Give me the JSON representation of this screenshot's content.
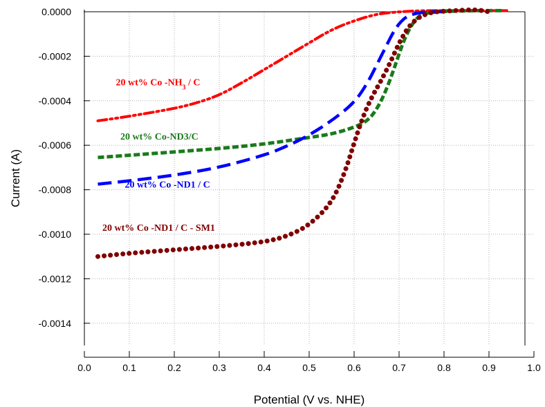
{
  "chart_data": {
    "type": "line",
    "xlabel": "Potential (V vs. NHE)",
    "ylabel": "Current (A)",
    "xlim": [
      0.0,
      1.0
    ],
    "ylim": [
      -0.0015,
      0.0
    ],
    "x_ticks": [
      "0.0",
      "0.1",
      "0.2",
      "0.3",
      "0.4",
      "0.5",
      "0.6",
      "0.7",
      "0.8",
      "0.9",
      "1.0"
    ],
    "y_ticks": [
      "0.0000",
      "-0.0002",
      "-0.0004",
      "-0.0006",
      "-0.0008",
      "-0.0010",
      "-0.0012",
      "-0.0014"
    ],
    "grid": true,
    "series": [
      {
        "name": "20 wt% Co -NH3 / C",
        "color": "#ff0000",
        "style": "dash-dot-dot",
        "points": [
          [
            0.03,
            -0.00049
          ],
          [
            0.1,
            -0.00047
          ],
          [
            0.2,
            -0.000435
          ],
          [
            0.25,
            -0.00041
          ],
          [
            0.3,
            -0.000375
          ],
          [
            0.35,
            -0.00032
          ],
          [
            0.4,
            -0.00026
          ],
          [
            0.45,
            -0.0002
          ],
          [
            0.5,
            -0.00014
          ],
          [
            0.55,
            -8e-05
          ],
          [
            0.6,
            -4e-05
          ],
          [
            0.65,
            -1e-05
          ],
          [
            0.7,
            0.0
          ],
          [
            0.75,
            5e-06
          ],
          [
            0.8,
            5e-06
          ],
          [
            0.85,
            5e-06
          ],
          [
            0.9,
            5e-06
          ],
          [
            0.94,
            5e-06
          ]
        ]
      },
      {
        "name": "20 wt% Co-ND3/C",
        "color": "#1a7a1a",
        "style": "dash",
        "points": [
          [
            0.03,
            -0.000655
          ],
          [
            0.1,
            -0.000645
          ],
          [
            0.2,
            -0.00063
          ],
          [
            0.3,
            -0.000615
          ],
          [
            0.4,
            -0.000595
          ],
          [
            0.5,
            -0.000565
          ],
          [
            0.55,
            -0.00055
          ],
          [
            0.6,
            -0.00052
          ],
          [
            0.63,
            -0.00049
          ],
          [
            0.65,
            -0.00044
          ],
          [
            0.67,
            -0.00036
          ],
          [
            0.69,
            -0.00025
          ],
          [
            0.71,
            -0.00013
          ],
          [
            0.73,
            -5e-05
          ],
          [
            0.75,
            -1e-05
          ],
          [
            0.78,
            0.0
          ],
          [
            0.85,
            5e-06
          ],
          [
            0.93,
            5e-06
          ]
        ]
      },
      {
        "name": "20 wt% Co -ND1 / C",
        "color": "#0000ff",
        "style": "long-dash",
        "points": [
          [
            0.03,
            -0.000775
          ],
          [
            0.1,
            -0.00076
          ],
          [
            0.2,
            -0.000735
          ],
          [
            0.3,
            -0.0007
          ],
          [
            0.4,
            -0.000645
          ],
          [
            0.45,
            -0.000605
          ],
          [
            0.5,
            -0.000555
          ],
          [
            0.55,
            -0.00049
          ],
          [
            0.6,
            -0.00041
          ],
          [
            0.63,
            -0.00032
          ],
          [
            0.65,
            -0.00024
          ],
          [
            0.67,
            -0.00016
          ],
          [
            0.69,
            -8e-05
          ],
          [
            0.71,
            -3e-05
          ],
          [
            0.73,
            -1e-05
          ],
          [
            0.76,
            0.0
          ],
          [
            0.8,
            0.0
          ]
        ]
      },
      {
        "name": "20 wt% Co -ND1 / C - SM1",
        "color": "#800000",
        "style": "dotted",
        "points": [
          [
            0.03,
            -0.0011
          ],
          [
            0.1,
            -0.001085
          ],
          [
            0.2,
            -0.00107
          ],
          [
            0.3,
            -0.001055
          ],
          [
            0.4,
            -0.001035
          ],
          [
            0.45,
            -0.00101
          ],
          [
            0.5,
            -0.00096
          ],
          [
            0.55,
            -0.00086
          ],
          [
            0.58,
            -0.00072
          ],
          [
            0.6,
            -0.00059
          ],
          [
            0.62,
            -0.00047
          ],
          [
            0.64,
            -0.00038
          ],
          [
            0.66,
            -0.00031
          ],
          [
            0.68,
            -0.00023
          ],
          [
            0.7,
            -0.00014
          ],
          [
            0.72,
            -7e-05
          ],
          [
            0.74,
            -3e-05
          ],
          [
            0.76,
            -1e-05
          ],
          [
            0.78,
            0.0
          ],
          [
            0.82,
            5e-06
          ],
          [
            0.87,
            1e-05
          ],
          [
            0.9,
            0.0
          ]
        ]
      }
    ],
    "annotations": [
      {
        "series": 0,
        "text": "20 wt% Co -NH",
        "sub": "3",
        "suffix": " / C",
        "x": 0.07,
        "y": -0.00033
      },
      {
        "series": 1,
        "text": "20 wt% Co-ND3/C",
        "x": 0.08,
        "y": -0.000575
      },
      {
        "series": 2,
        "text": "20 wt% Co -ND1 / C",
        "x": 0.09,
        "y": -0.00079
      },
      {
        "series": 3,
        "text": "20 wt% Co -ND1 / C - SM1",
        "x": 0.04,
        "y": -0.000985
      }
    ]
  }
}
